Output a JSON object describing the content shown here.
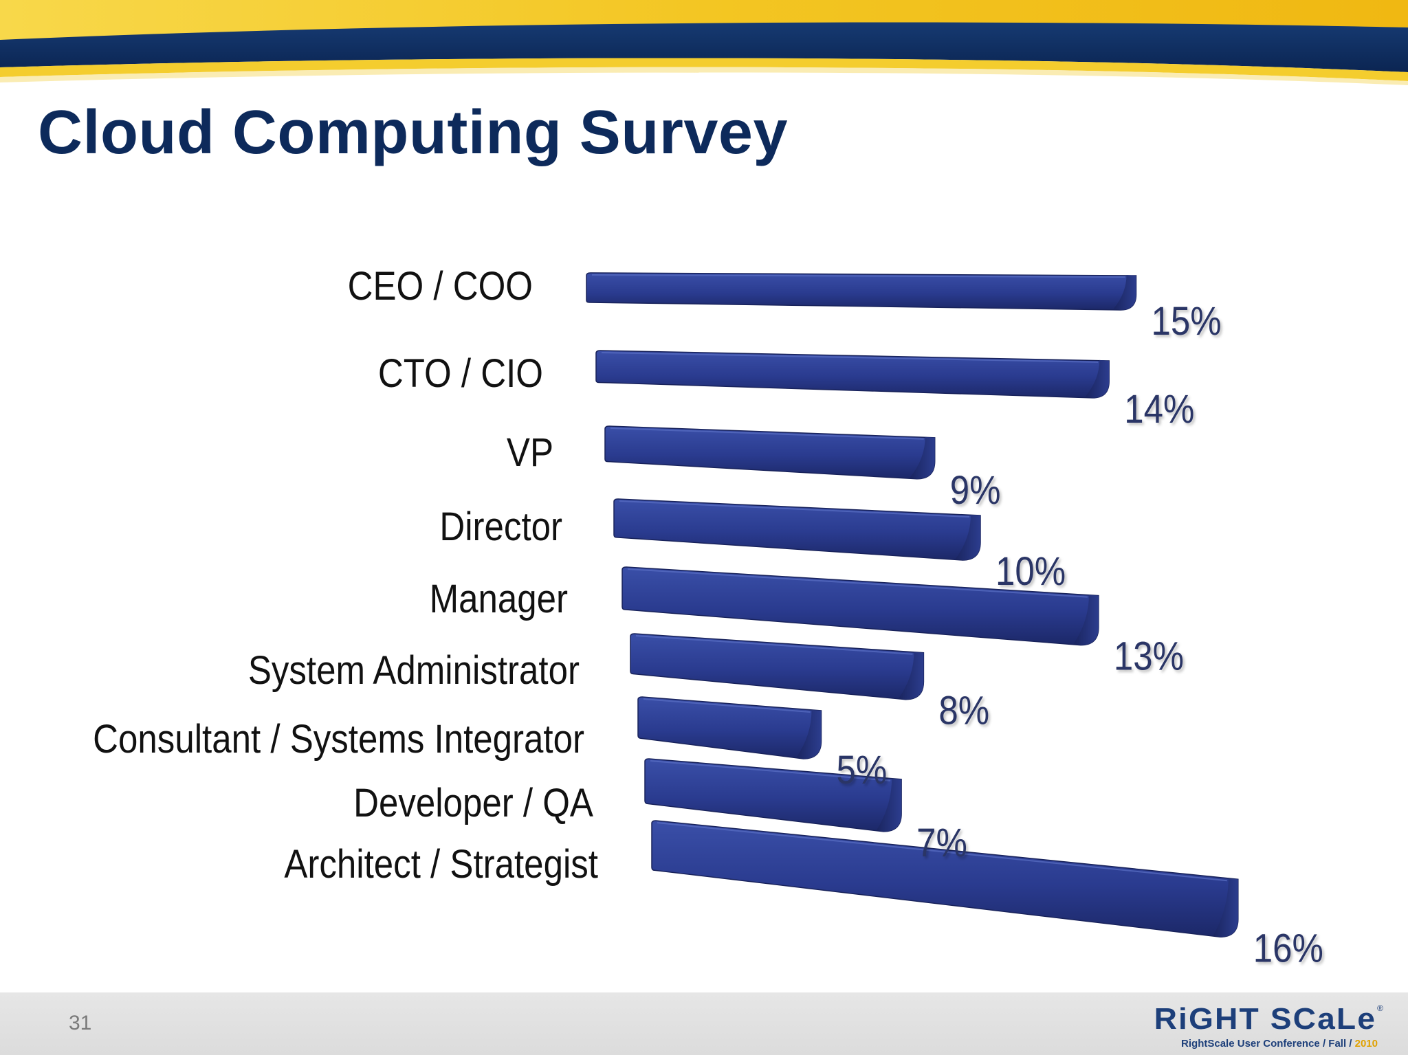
{
  "slide": {
    "title": "Cloud Computing Survey",
    "page_number": "31"
  },
  "logo": {
    "wordmark": "RiGHT SCaLe",
    "registered": "®",
    "tagline": "RightScale User Conference / Fall / ",
    "year": "2010"
  },
  "colors": {
    "title": "#0d2a5b",
    "bar_face": "#2a3b8f",
    "bar_dark": "#1a2560",
    "value_label": "#2a3566",
    "band_navy": "#0e2c5e",
    "band_gold": "#f2c21a"
  },
  "chart_data": {
    "type": "bar",
    "orientation": "horizontal",
    "style": "3d-perspective",
    "categories": [
      "CEO / COO",
      "CTO / CIO",
      "VP",
      "Director",
      "Manager",
      "System Administrator",
      "Consultant / Systems Integrator",
      "Developer / QA",
      "Architect / Strategist"
    ],
    "values": [
      15,
      14,
      9,
      10,
      13,
      8,
      5,
      7,
      16
    ],
    "value_labels": [
      "15%",
      "14%",
      "9%",
      "10%",
      "13%",
      "8%",
      "5%",
      "7%",
      "16%"
    ],
    "unit": "%",
    "title": "",
    "xlabel": "",
    "ylabel": "",
    "grid": false,
    "legend": "none"
  }
}
